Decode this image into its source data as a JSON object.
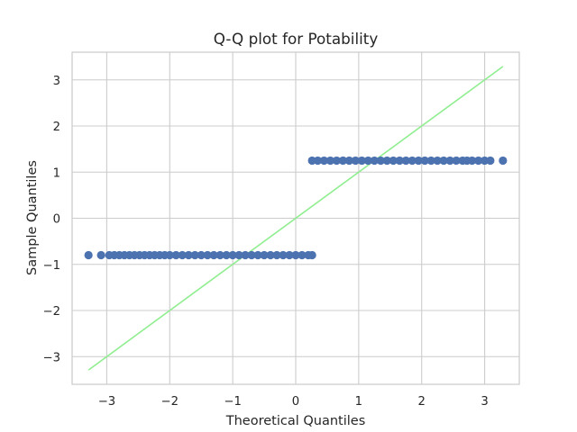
{
  "chart_data": {
    "type": "scatter",
    "title": "Q-Q plot for Potability",
    "xlabel": "Theoretical Quantiles",
    "ylabel": "Sample Quantiles",
    "xlim": [
      -3.55,
      3.55
    ],
    "ylim": [
      -3.6,
      3.6
    ],
    "xticks": [
      -3,
      -2,
      -1,
      0,
      1,
      2,
      3
    ],
    "yticks": [
      -3,
      -2,
      -1,
      0,
      1,
      2,
      3
    ],
    "xtick_labels": [
      "−3",
      "−2",
      "−1",
      "0",
      "1",
      "2",
      "3"
    ],
    "ytick_labels": [
      "−3",
      "−2",
      "−1",
      "0",
      "1",
      "2",
      "3"
    ],
    "grid": true,
    "point_color": "#4c72b0",
    "line_color": "#90ee90",
    "reference_line": {
      "x": [
        -3.29,
        3.29
      ],
      "y": [
        -3.29,
        3.29
      ]
    },
    "series": [
      {
        "x": [
          -3.29,
          -3.09,
          -2.96,
          -2.88,
          -2.8,
          -2.72,
          -2.64,
          -2.56,
          -2.48,
          -2.4,
          -2.32,
          -2.24,
          -2.16,
          -2.08,
          -2.0,
          -1.9,
          -1.8,
          -1.7,
          -1.6,
          -1.5,
          -1.4,
          -1.3,
          -1.2,
          -1.1,
          -1.0,
          -0.9,
          -0.8,
          -0.7,
          -0.6,
          -0.5,
          -0.4,
          -0.3,
          -0.2,
          -0.1,
          0.0,
          0.1,
          0.2,
          0.26
        ],
        "y": [
          -0.8,
          -0.8,
          -0.8,
          -0.8,
          -0.8,
          -0.8,
          -0.8,
          -0.8,
          -0.8,
          -0.8,
          -0.8,
          -0.8,
          -0.8,
          -0.8,
          -0.8,
          -0.8,
          -0.8,
          -0.8,
          -0.8,
          -0.8,
          -0.8,
          -0.8,
          -0.8,
          -0.8,
          -0.8,
          -0.8,
          -0.8,
          -0.8,
          -0.8,
          -0.8,
          -0.8,
          -0.8,
          -0.8,
          -0.8,
          -0.8,
          -0.8,
          -0.8,
          -0.8
        ]
      },
      {
        "x": [
          0.26,
          0.35,
          0.45,
          0.55,
          0.65,
          0.75,
          0.85,
          0.95,
          1.05,
          1.15,
          1.25,
          1.35,
          1.45,
          1.55,
          1.65,
          1.75,
          1.85,
          1.95,
          2.05,
          2.15,
          2.25,
          2.35,
          2.45,
          2.55,
          2.65,
          2.72,
          2.8,
          2.9,
          3.0,
          3.09,
          3.29
        ],
        "y": [
          1.25,
          1.25,
          1.25,
          1.25,
          1.25,
          1.25,
          1.25,
          1.25,
          1.25,
          1.25,
          1.25,
          1.25,
          1.25,
          1.25,
          1.25,
          1.25,
          1.25,
          1.25,
          1.25,
          1.25,
          1.25,
          1.25,
          1.25,
          1.25,
          1.25,
          1.25,
          1.25,
          1.25,
          1.25,
          1.25,
          1.25
        ]
      }
    ]
  }
}
